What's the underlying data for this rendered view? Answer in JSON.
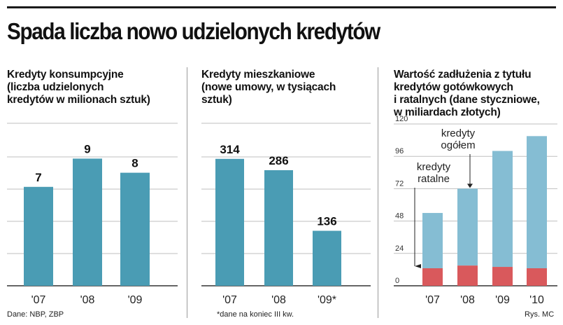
{
  "title": "Spada liczba nowo udzielonych kredytów",
  "colors": {
    "bar": "#4a9cb4",
    "bar_light": "#85bdd3",
    "bar_red": "#d9595c",
    "grid": "#bfbfbf",
    "axis": "#333333"
  },
  "chart_data": [
    {
      "type": "bar",
      "title": "Kredyty konsumpcyjne\n(liczba udzielonych\nkredytów w milionach sztuk)",
      "categories": [
        "'07",
        "'08",
        "'09"
      ],
      "values": [
        7,
        9,
        8
      ],
      "data_labels": [
        "7",
        "9",
        "8"
      ],
      "ylim": [
        0,
        11.5
      ],
      "grid": true
    },
    {
      "type": "bar",
      "title": "Kredyty mieszkaniowe\n(nowe umowy, w tysiącach\n sztuk)",
      "categories": [
        "'07",
        "'08",
        "'09*"
      ],
      "values": [
        314,
        286,
        136
      ],
      "data_labels": [
        "314",
        "286",
        "136"
      ],
      "ylim": [
        0,
        402
      ],
      "grid": true
    },
    {
      "type": "bar",
      "stacked": true,
      "title": "Wartość zadłużenia z tytułu\nkredytów gotówkowych\ni ratalnych (dane styczniowe,\nw miliardach złotych)",
      "categories": [
        "'07",
        "'08",
        "'09",
        "'10"
      ],
      "series": [
        {
          "name": "kredyty ratalne",
          "values": [
            13,
            15,
            14,
            13
          ]
        },
        {
          "name": "kredyty ogółem",
          "values": [
            54,
            72,
            100,
            111
          ]
        }
      ],
      "yticks": [
        0,
        24,
        48,
        72,
        96,
        120
      ],
      "ylim": [
        0,
        120
      ],
      "grid": true,
      "annotations": [
        {
          "text": "kredyty ratalne",
          "target": "kredyty ratalne"
        },
        {
          "text": "kredyty ogółem",
          "target": "kredyty ogółem"
        }
      ]
    }
  ],
  "footer": {
    "source": "Dane: NBP, ZBP",
    "note": "*dane na koniec III kw.",
    "credit": "Rys. MC"
  }
}
